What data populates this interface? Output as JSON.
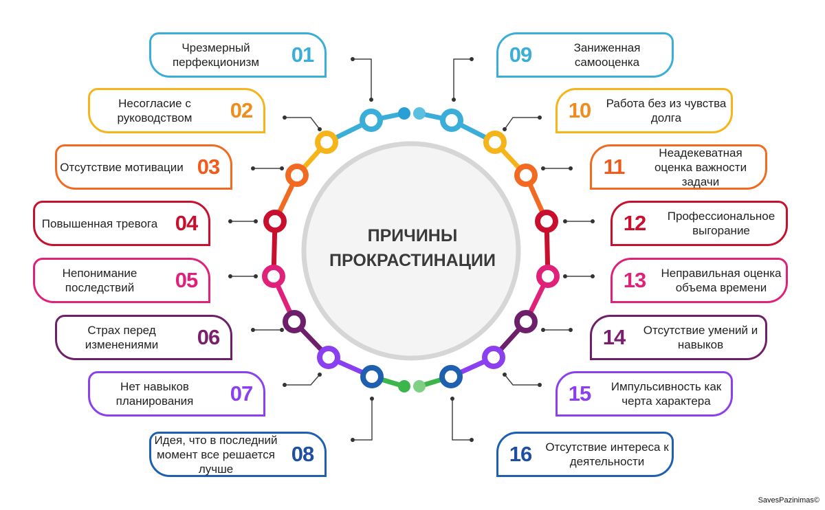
{
  "title": [
    "ПРИЧИНЫ",
    "ПРОКРАСТИНАЦИИ"
  ],
  "credit": "SavesPazinimas©",
  "items": [
    {
      "num": "01",
      "text": "Чрезмерный перфекционизм",
      "color": "#3aaed8",
      "numColor": "#3aaed8"
    },
    {
      "num": "02",
      "text": "Несогласие с руководством",
      "color": "#f5b41a",
      "numColor": "#f08c1c"
    },
    {
      "num": "03",
      "text": "Отсутствие мотивации",
      "color": "#f26a22",
      "numColor": "#f25a1c"
    },
    {
      "num": "04",
      "text": "Повышенная тревога",
      "color": "#c8102e",
      "numColor": "#c8102e"
    },
    {
      "num": "05",
      "text": "Непонимание последствий",
      "color": "#e0217a",
      "numColor": "#e0217a"
    },
    {
      "num": "06",
      "text": "Страх перед изменениями",
      "color": "#6e1f6a",
      "numColor": "#7a1f6e"
    },
    {
      "num": "07",
      "text": "Нет навыков планирования",
      "color": "#8a3ff0",
      "numColor": "#8a3ff0"
    },
    {
      "num": "08",
      "text": "Идея, что в последний момент все решается лучше",
      "color": "#1e5fb0",
      "numColor": "#1e4fa0"
    },
    {
      "num": "09",
      "text": "Заниженная самооценка",
      "color": "#3aaed8",
      "numColor": "#3aaed8"
    },
    {
      "num": "10",
      "text": "Работа без из чувства долга",
      "color": "#f5b41a",
      "numColor": "#f08c1c"
    },
    {
      "num": "11",
      "text": "Неадекеватная оценка важности задачи",
      "color": "#f26a22",
      "numColor": "#f25a1c"
    },
    {
      "num": "12",
      "text": "Профессиональное выгорание",
      "color": "#c8102e",
      "numColor": "#c8102e"
    },
    {
      "num": "13",
      "text": "Неправильная оценка объема времени",
      "color": "#e0217a",
      "numColor": "#e0217a"
    },
    {
      "num": "14",
      "text": "Отсутствие умений и навыков",
      "color": "#6e1f6a",
      "numColor": "#7a1f6e"
    },
    {
      "num": "15",
      "text": "Импульсивность как черта характера",
      "color": "#8a3ff0",
      "numColor": "#8a3ff0"
    },
    {
      "num": "16",
      "text": "Отсутствие интереса к деятельности",
      "color": "#1e5fb0",
      "numColor": "#1e4fa0"
    }
  ]
}
